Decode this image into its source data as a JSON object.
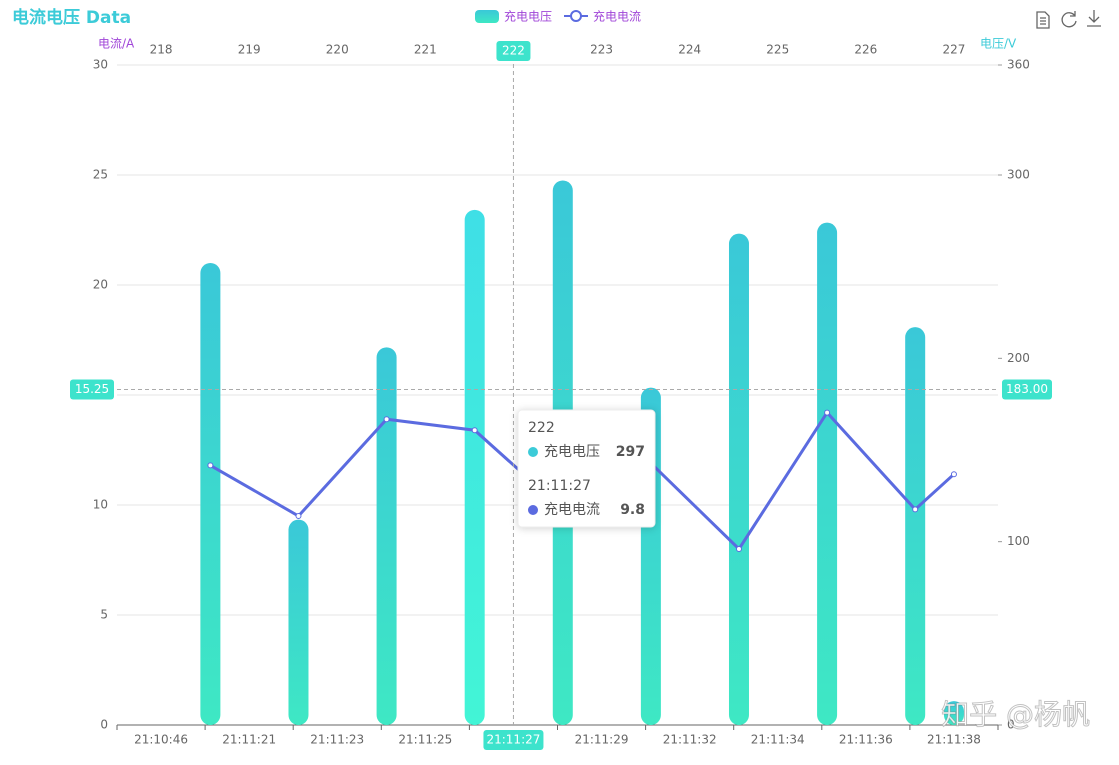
{
  "chart_data": {
    "type": "bar",
    "title": "电流电压 Data",
    "categories": [
      "21:10:46",
      "21:11:21",
      "21:11:23",
      "21:11:25",
      "21:11:27",
      "21:11:29",
      "21:11:32",
      "21:11:34",
      "21:11:36",
      "21:11:38"
    ],
    "top_categories": [
      "218",
      "219",
      "220",
      "221",
      "222",
      "223",
      "224",
      "225",
      "226",
      "227"
    ],
    "yname": "电流/A",
    "y2name": "电压/V",
    "ylim": [
      0,
      30
    ],
    "yticks": [
      0,
      5,
      10,
      15,
      20,
      25,
      30
    ],
    "y2lim": [
      0,
      360
    ],
    "y2ticks": [
      0,
      100,
      200,
      300,
      360
    ],
    "grid": true,
    "series": [
      {
        "name": "充电电压",
        "type": "bar",
        "axis": "y2",
        "color": "#3ccbd8",
        "values": [
          252,
          112,
          206,
          281,
          297,
          184,
          268,
          274,
          217,
          13
        ]
      },
      {
        "name": "充电电流",
        "type": "line",
        "color": "#5b6be0",
        "values": [
          11.8,
          9.5,
          13.9,
          13.4,
          9.8,
          11.9,
          8.0,
          14.2,
          9.8,
          11.4
        ]
      }
    ],
    "pointer": {
      "index": 4,
      "y": 15.25,
      "y2": {
        "value": 183,
        "label": "183.00"
      }
    },
    "annotation": "知乎 @杨帆"
  }
}
